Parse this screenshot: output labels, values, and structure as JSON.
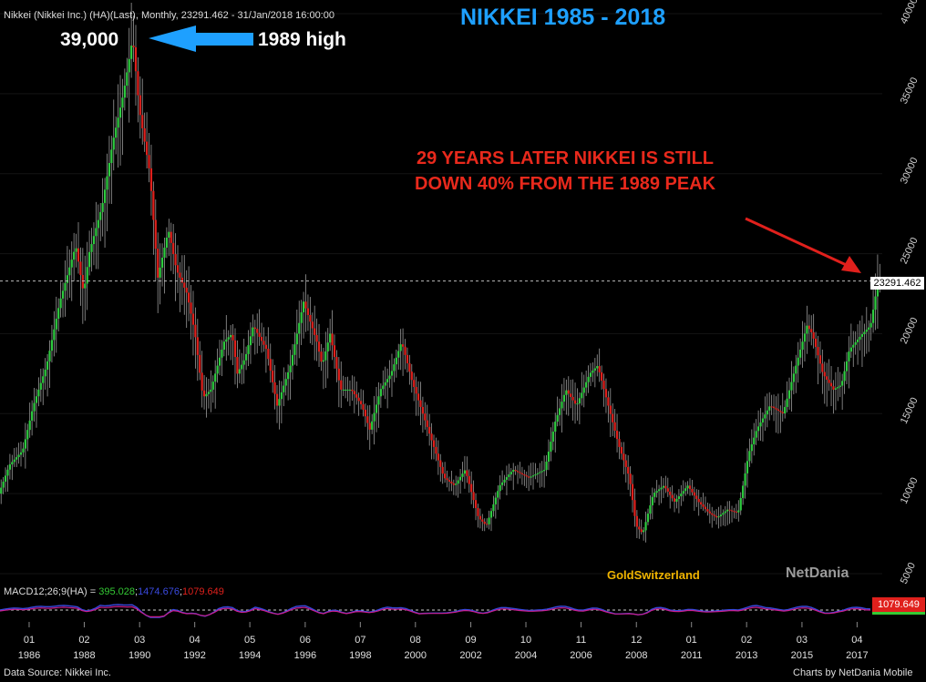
{
  "header": {
    "instrument": "Nikkei (Nikkei Inc.) (HA)(Last), Monthly, 23291.462 - 31/Jan/2018 16:00:00",
    "title": "NIKKEI 1985 - 2018"
  },
  "annotations": {
    "peak_value": "39,000",
    "peak_label": "1989 high",
    "message_line1": "29 YEARS  LATER NIKKEI IS STILL",
    "message_line2": "DOWN 40% FROM  THE 1989 PEAK",
    "brand": "GoldSwitzerland",
    "platform": "NetDania"
  },
  "price_label": "23291.462",
  "macd": {
    "prefix": "MACD12;26;9(HA) = ",
    "macd": "395.028",
    "signal": "1474.676",
    "hist": "1079.649",
    "box": "1079.649",
    "colors": {
      "macd": "#34c934",
      "signal": "#2f3fd8",
      "hist": "#e0201c"
    }
  },
  "footer": {
    "source": "Data Source: Nikkei Inc.",
    "credit": "Charts by NetDania Mobile"
  },
  "colors": {
    "up": "#2ecc40",
    "down": "#e0201c",
    "background": "#000000",
    "title": "#1ea0ff",
    "arrow": "#1ea0ff"
  },
  "chart_data": {
    "type": "candlestick (Heikin-Ashi, monthly)",
    "title": "NIKKEI 1985 - 2018",
    "ylim": [
      5000,
      40000
    ],
    "y_ticks": [
      5000,
      10000,
      15000,
      20000,
      25000,
      30000,
      35000,
      40000
    ],
    "x_ticks": [
      {
        "month": "01",
        "year": "1986",
        "t": 1986.0
      },
      {
        "month": "02",
        "year": "1988",
        "t": 1988.08
      },
      {
        "month": "03",
        "year": "1990",
        "t": 1990.17
      },
      {
        "month": "04",
        "year": "1992",
        "t": 1992.25
      },
      {
        "month": "05",
        "year": "1994",
        "t": 1994.33
      },
      {
        "month": "06",
        "year": "1996",
        "t": 1996.42
      },
      {
        "month": "07",
        "year": "1998",
        "t": 1998.5
      },
      {
        "month": "08",
        "year": "2000",
        "t": 2000.58
      },
      {
        "month": "09",
        "year": "2002",
        "t": 2002.67
      },
      {
        "month": "10",
        "year": "2004",
        "t": 2004.75
      },
      {
        "month": "11",
        "year": "2006",
        "t": 2006.83
      },
      {
        "month": "12",
        "year": "2008",
        "t": 2008.92
      },
      {
        "month": "01",
        "year": "2011",
        "t": 2011.0
      },
      {
        "month": "02",
        "year": "2013",
        "t": 2013.08
      },
      {
        "month": "03",
        "year": "2015",
        "t": 2015.17
      },
      {
        "month": "04",
        "year": "2017",
        "t": 2017.25
      }
    ],
    "series": [
      {
        "values_approx": [
          [
            1984.9,
            10000
          ],
          [
            1985.3,
            11800
          ],
          [
            1985.8,
            12700
          ],
          [
            1986.2,
            15500
          ],
          [
            1986.7,
            18000
          ],
          [
            1987.2,
            22000
          ],
          [
            1987.8,
            25500
          ],
          [
            1988.1,
            22500
          ],
          [
            1988.3,
            25000
          ],
          [
            1988.8,
            28000
          ],
          [
            1989.2,
            32000
          ],
          [
            1989.6,
            35000
          ],
          [
            1989.95,
            38500
          ],
          [
            1990.2,
            34000
          ],
          [
            1990.6,
            30000
          ],
          [
            1990.9,
            23500
          ],
          [
            1991.3,
            26500
          ],
          [
            1991.6,
            24000
          ],
          [
            1992.0,
            22500
          ],
          [
            1992.3,
            20000
          ],
          [
            1992.6,
            16000
          ],
          [
            1992.9,
            16500
          ],
          [
            1993.4,
            19500
          ],
          [
            1993.7,
            20000
          ],
          [
            1993.9,
            17500
          ],
          [
            1994.2,
            18500
          ],
          [
            1994.5,
            20500
          ],
          [
            1995.0,
            19000
          ],
          [
            1995.4,
            15500
          ],
          [
            1995.9,
            18000
          ],
          [
            1996.4,
            22000
          ],
          [
            1996.9,
            19500
          ],
          [
            1997.1,
            18000
          ],
          [
            1997.4,
            20000
          ],
          [
            1997.8,
            16500
          ],
          [
            1998.2,
            16500
          ],
          [
            1998.6,
            15500
          ],
          [
            1998.9,
            14000
          ],
          [
            1999.3,
            16500
          ],
          [
            1999.7,
            17500
          ],
          [
            2000.1,
            19500
          ],
          [
            2000.5,
            17000
          ],
          [
            2000.9,
            15000
          ],
          [
            2001.3,
            13000
          ],
          [
            2001.7,
            11000
          ],
          [
            2002.1,
            10500
          ],
          [
            2002.5,
            11500
          ],
          [
            2003.0,
            8500
          ],
          [
            2003.3,
            8000
          ],
          [
            2003.8,
            10500
          ],
          [
            2004.3,
            11500
          ],
          [
            2004.9,
            11000
          ],
          [
            2005.5,
            11500
          ],
          [
            2005.9,
            14500
          ],
          [
            2006.3,
            16500
          ],
          [
            2006.7,
            15500
          ],
          [
            2007.2,
            17500
          ],
          [
            2007.5,
            18000
          ],
          [
            2007.9,
            15500
          ],
          [
            2008.3,
            13000
          ],
          [
            2008.7,
            11000
          ],
          [
            2008.95,
            8000
          ],
          [
            2009.2,
            7500
          ],
          [
            2009.6,
            10000
          ],
          [
            2010.0,
            10500
          ],
          [
            2010.4,
            9500
          ],
          [
            2010.9,
            10500
          ],
          [
            2011.3,
            9500
          ],
          [
            2011.7,
            8800
          ],
          [
            2012.0,
            8500
          ],
          [
            2012.4,
            9000
          ],
          [
            2012.8,
            8800
          ],
          [
            2013.2,
            12500
          ],
          [
            2013.5,
            14000
          ],
          [
            2014.0,
            15500
          ],
          [
            2014.5,
            15000
          ],
          [
            2014.9,
            17500
          ],
          [
            2015.4,
            20500
          ],
          [
            2015.6,
            20000
          ],
          [
            2016.0,
            17500
          ],
          [
            2016.4,
            16500
          ],
          [
            2016.7,
            16800
          ],
          [
            2017.0,
            19000
          ],
          [
            2017.5,
            20000
          ],
          [
            2017.8,
            20500
          ],
          [
            2018.08,
            23291.462
          ]
        ]
      }
    ]
  }
}
